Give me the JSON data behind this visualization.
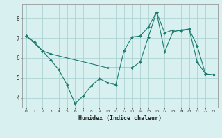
{
  "line1_x": [
    0,
    1,
    2,
    3,
    4,
    5,
    6,
    7,
    8,
    9,
    10,
    11,
    12,
    13,
    14,
    15,
    16,
    17,
    18,
    19,
    20,
    21,
    22,
    23
  ],
  "line1_y": [
    7.1,
    6.8,
    6.35,
    5.9,
    5.4,
    4.65,
    3.7,
    4.1,
    4.6,
    4.95,
    4.75,
    4.65,
    6.35,
    7.05,
    7.1,
    7.55,
    8.3,
    6.3,
    7.3,
    7.4,
    7.45,
    5.8,
    5.2,
    5.15
  ],
  "line2_x": [
    0,
    2,
    3,
    10,
    13,
    14,
    15,
    16,
    17,
    18,
    19,
    20,
    21,
    22,
    23
  ],
  "line2_y": [
    7.1,
    6.35,
    6.2,
    5.5,
    5.5,
    5.8,
    7.05,
    8.3,
    7.25,
    7.4,
    7.35,
    7.45,
    6.6,
    5.2,
    5.15
  ],
  "line_color": "#1a7a6e",
  "bg_color": "#d8f0f0",
  "grid_color": "#aed4d4",
  "xlabel": "Humidex (Indice chaleur)",
  "xlim": [
    -0.5,
    23.5
  ],
  "ylim": [
    3.5,
    8.7
  ],
  "yticks": [
    4,
    5,
    6,
    7,
    8
  ],
  "xticks": [
    0,
    1,
    2,
    3,
    4,
    5,
    6,
    7,
    8,
    9,
    10,
    11,
    12,
    13,
    14,
    15,
    16,
    17,
    18,
    19,
    20,
    21,
    22,
    23
  ]
}
